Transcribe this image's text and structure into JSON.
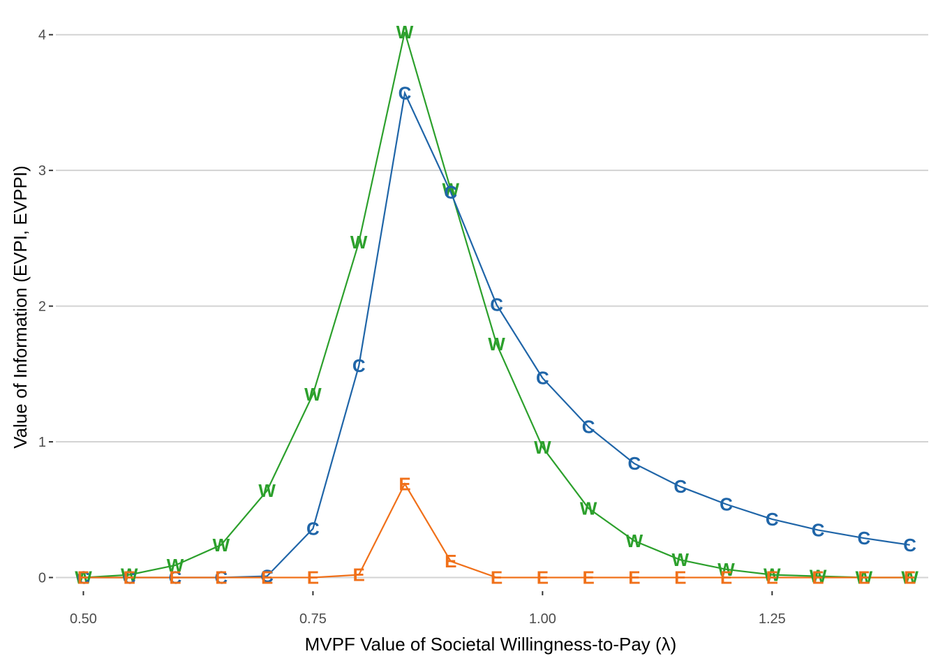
{
  "chart_data": {
    "type": "line",
    "xlabel": "MVPF Value of Societal Willingness-to-Pay (λ)",
    "ylabel": "Value of Information (EVPI, EVPPI)",
    "xlim": [
      0.47,
      1.42
    ],
    "ylim": [
      -0.09,
      4.05
    ],
    "x_ticks": [
      0.5,
      0.75,
      1.0,
      1.25
    ],
    "x_tick_labels": [
      "0.50",
      "0.75",
      "1.00",
      "1.25"
    ],
    "y_ticks": [
      0,
      1,
      2,
      3,
      4
    ],
    "y_tick_labels": [
      "0",
      "1",
      "2",
      "3",
      "4"
    ],
    "grid": "horizontal major",
    "legend": "none",
    "x": [
      0.5,
      0.55,
      0.6,
      0.65,
      0.7,
      0.75,
      0.8,
      0.85,
      0.9,
      0.95,
      1.0,
      1.05,
      1.1,
      1.15,
      1.2,
      1.25,
      1.3,
      1.35,
      1.4
    ],
    "series": [
      {
        "marker": "W",
        "color": "#2ca02c",
        "values": [
          0.0,
          0.02,
          0.09,
          0.24,
          0.64,
          1.35,
          2.47,
          4.02,
          2.86,
          1.72,
          0.96,
          0.51,
          0.27,
          0.13,
          0.06,
          0.02,
          0.01,
          0.0,
          0.0
        ]
      },
      {
        "marker": "C",
        "color": "#1f65a8",
        "values": [
          0.0,
          0.0,
          0.0,
          0.0,
          0.01,
          0.36,
          1.56,
          3.57,
          2.84,
          2.01,
          1.47,
          1.11,
          0.84,
          0.67,
          0.54,
          0.43,
          0.35,
          0.29,
          0.24
        ]
      },
      {
        "marker": "E",
        "color": "#f07019",
        "values": [
          0.0,
          0.0,
          0.0,
          0.0,
          0.0,
          0.0,
          0.02,
          0.69,
          0.12,
          0.0,
          0.0,
          0.0,
          0.0,
          0.0,
          0.0,
          0.0,
          0.0,
          0.0,
          0.0
        ]
      }
    ]
  }
}
